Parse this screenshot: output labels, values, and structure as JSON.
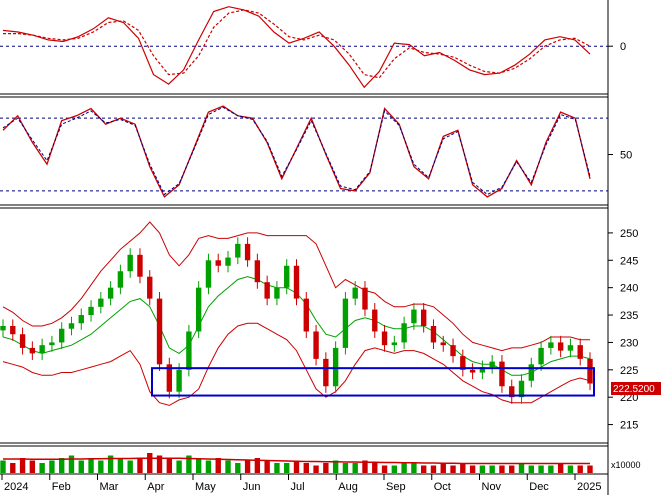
{
  "chart_data": [
    {
      "type": "line",
      "title": "",
      "y_ticks": [
        0
      ],
      "reference_lines": [
        0
      ],
      "grid": false,
      "series": [
        {
          "values": [
            1.0,
            0.9,
            0.7,
            0.4,
            0.3,
            0.6,
            1.1,
            1.8,
            1.5,
            0.5,
            -1.8,
            -2.4,
            -1.5,
            0.4,
            2.2,
            2.5,
            2.3,
            1.9,
            0.9,
            0.2,
            0.5,
            0.9,
            0.0,
            -1.2,
            -2.6,
            -1.6,
            0.2,
            0.1,
            -0.6,
            -0.4,
            -0.9,
            -1.5,
            -1.8,
            -1.7,
            -1.2,
            -0.5,
            0.4,
            0.6,
            0.4,
            -0.5
          ],
          "color": "#cc0000",
          "dash": "solid"
        },
        {
          "values": [
            0.8,
            0.8,
            0.7,
            0.5,
            0.4,
            0.5,
            0.9,
            1.5,
            1.6,
            1.0,
            -0.6,
            -1.8,
            -1.7,
            -0.6,
            1.2,
            2.1,
            2.3,
            2.1,
            1.4,
            0.6,
            0.4,
            0.7,
            0.4,
            -0.5,
            -1.8,
            -2.0,
            -0.8,
            -0.1,
            -0.4,
            -0.5,
            -0.7,
            -1.2,
            -1.6,
            -1.7,
            -1.4,
            -0.8,
            0.0,
            0.4,
            0.5,
            0.0
          ],
          "color": "#cc0000",
          "dash": "dashed"
        }
      ]
    },
    {
      "type": "line",
      "title": "",
      "y_ticks": [
        50
      ],
      "reference_lines": [
        80,
        20
      ],
      "ylim": [
        10,
        95
      ],
      "grid": false,
      "series": [
        {
          "values": [
            70,
            82,
            60,
            42,
            78,
            82,
            88,
            75,
            80,
            75,
            40,
            15,
            25,
            55,
            85,
            90,
            82,
            80,
            60,
            30,
            55,
            80,
            50,
            22,
            20,
            35,
            88,
            75,
            40,
            30,
            65,
            70,
            25,
            15,
            22,
            45,
            25,
            60,
            85,
            80,
            30
          ],
          "color": "#cc0000",
          "dash": "solid"
        },
        {
          "values": [
            72,
            80,
            62,
            45,
            75,
            80,
            86,
            76,
            79,
            74,
            42,
            17,
            26,
            54,
            83,
            89,
            82,
            79,
            61,
            32,
            54,
            78,
            51,
            24,
            21,
            36,
            86,
            74,
            42,
            31,
            63,
            69,
            27,
            17,
            23,
            44,
            27,
            58,
            83,
            79,
            32
          ],
          "color": "#000080",
          "dash": "dashed"
        }
      ]
    },
    {
      "type": "candlestick",
      "title": "",
      "ylim": [
        212,
        254
      ],
      "y_ticks": [
        215,
        220,
        225,
        230,
        235,
        240,
        245,
        250
      ],
      "x_tick_labels": [
        "2024",
        "Feb",
        "Mar",
        "Apr",
        "May",
        "Jun",
        "Jul",
        "Aug",
        "Sep",
        "Oct",
        "Nov",
        "Dec",
        "2025"
      ],
      "last_price_label": "222.5200",
      "up_color": "#00a000",
      "down_color": "#cc0000",
      "close": [
        233.0,
        231.5,
        229.0,
        228.0,
        229.5,
        230.0,
        232.5,
        233.5,
        235.0,
        236.5,
        238.0,
        240.0,
        243.0,
        246.0,
        242.0,
        238.0,
        226.0,
        221.0,
        225.0,
        232.0,
        240.0,
        245.0,
        244.0,
        245.5,
        248.0,
        245.0,
        241.0,
        238.0,
        240.0,
        244.0,
        238.0,
        232.0,
        227.0,
        222.0,
        229.0,
        238.0,
        240.0,
        236.0,
        232.0,
        229.5,
        230.0,
        233.5,
        236.0,
        233.0,
        230.0,
        229.5,
        227.5,
        225.0,
        224.5,
        225.5,
        226.5,
        222.0,
        220.0,
        223.0,
        226.0,
        229.0,
        230.0,
        228.5,
        229.5,
        227.0,
        222.5
      ],
      "middle_band": [
        231.0,
        230.5,
        229.5,
        228.5,
        228.0,
        228.5,
        229.0,
        229.5,
        230.5,
        231.5,
        233.0,
        234.5,
        236.0,
        237.5,
        238.0,
        236.5,
        233.0,
        229.0,
        228.0,
        229.5,
        233.0,
        236.5,
        238.5,
        240.0,
        241.5,
        242.0,
        241.5,
        240.5,
        240.0,
        240.0,
        239.0,
        237.0,
        234.0,
        231.5,
        231.0,
        232.5,
        234.0,
        234.5,
        234.0,
        233.0,
        232.5,
        232.5,
        233.0,
        233.0,
        232.0,
        230.5,
        229.0,
        227.5,
        226.5,
        226.0,
        226.0,
        225.0,
        224.0,
        224.0,
        224.5,
        225.5,
        226.5,
        227.0,
        227.5,
        227.5,
        227.0
      ],
      "upper_band": [
        236.5,
        235.5,
        234.0,
        233.0,
        233.0,
        233.5,
        234.5,
        236.0,
        238.0,
        240.5,
        243.0,
        245.0,
        247.0,
        248.5,
        250.0,
        252.0,
        250.0,
        246.0,
        244.0,
        246.0,
        249.0,
        249.5,
        249.0,
        249.0,
        249.5,
        250.0,
        250.0,
        249.5,
        249.5,
        249.5,
        249.5,
        249.5,
        248.0,
        244.0,
        240.0,
        241.5,
        240.5,
        239.5,
        239.0,
        237.5,
        236.5,
        236.5,
        237.0,
        237.0,
        236.5,
        235.0,
        233.5,
        231.5,
        230.0,
        229.5,
        229.0,
        228.5,
        229.0,
        229.0,
        229.5,
        230.0,
        231.0,
        231.0,
        231.0,
        230.5,
        230.5
      ],
      "lower_band": [
        226.5,
        226.0,
        225.5,
        224.5,
        224.0,
        224.0,
        224.5,
        224.5,
        225.0,
        225.5,
        226.0,
        226.5,
        227.5,
        228.5,
        226.0,
        221.0,
        219.0,
        218.5,
        219.5,
        220.0,
        221.5,
        225.5,
        229.0,
        231.5,
        233.0,
        233.5,
        233.5,
        232.5,
        231.5,
        230.5,
        228.5,
        225.0,
        221.5,
        220.0,
        221.0,
        223.0,
        226.0,
        228.5,
        229.0,
        228.5,
        228.0,
        228.5,
        228.5,
        228.0,
        227.0,
        226.0,
        224.5,
        223.0,
        222.0,
        221.0,
        220.5,
        219.5,
        219.0,
        219.0,
        219.0,
        220.0,
        221.0,
        222.0,
        223.0,
        223.5,
        223.0
      ],
      "highlight_box": {
        "y_range": [
          220.3,
          225.3
        ],
        "color": "#0000cc"
      }
    },
    {
      "type": "bar",
      "title": "",
      "unit_label": "x10000",
      "up_color": "#00a000",
      "down_color": "#cc0000",
      "avg_color": "#cc0000",
      "ylim": [
        0,
        10
      ],
      "values": [
        5,
        4,
        6,
        5,
        4,
        5,
        6,
        7,
        5,
        6,
        5,
        7,
        6,
        5,
        6,
        8,
        7,
        6,
        5,
        7,
        6,
        5,
        6,
        5,
        4,
        5,
        6,
        5,
        4,
        4,
        5,
        4,
        3,
        4,
        5,
        4,
        4,
        5,
        4,
        3,
        3,
        4,
        4,
        3,
        3,
        4,
        3,
        4,
        3,
        3,
        3,
        3,
        3,
        4,
        3,
        3,
        3,
        4,
        3,
        3,
        3
      ],
      "average": [
        5.6,
        5.6,
        5.6,
        5.5,
        5.5,
        5.5,
        5.5,
        5.6,
        5.6,
        5.7,
        5.7,
        5.8,
        5.8,
        5.8,
        5.9,
        5.9,
        5.9,
        5.9,
        5.9,
        5.8,
        5.7,
        5.6,
        5.5,
        5.4,
        5.3,
        5.2,
        5.1,
        5.0,
        4.9,
        4.8,
        4.7,
        4.6,
        4.6,
        4.5,
        4.5,
        4.4,
        4.4,
        4.3,
        4.3,
        4.2,
        4.2,
        4.1,
        4.1,
        4.0,
        4.0,
        3.9,
        3.9,
        3.8,
        3.8,
        3.8,
        3.8,
        3.8,
        3.8,
        3.8,
        3.8,
        3.8,
        3.8,
        3.8,
        3.8,
        3.8,
        3.8
      ]
    }
  ]
}
